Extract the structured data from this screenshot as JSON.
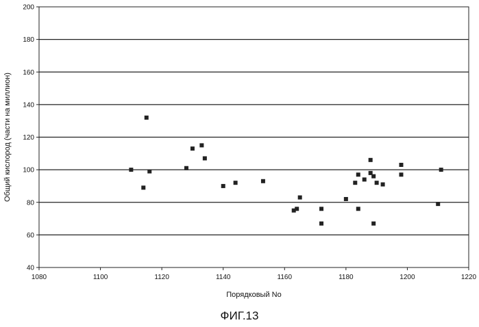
{
  "chart_data": {
    "type": "scatter",
    "title": "",
    "xlabel": "Порядковый No",
    "ylabel": "Общий кислород (части на миллион)",
    "xlim": [
      1080,
      1220
    ],
    "ylim": [
      40,
      200
    ],
    "x_ticks": [
      1080,
      1100,
      1120,
      1140,
      1160,
      1180,
      1200,
      1220
    ],
    "y_ticks": [
      40,
      60,
      80,
      100,
      120,
      140,
      160,
      180,
      200
    ],
    "grid": "horizontal",
    "marker_color": "#222222",
    "series": [
      {
        "points": [
          [
            1110,
            100
          ],
          [
            1114,
            89
          ],
          [
            1115,
            132
          ],
          [
            1116,
            99
          ],
          [
            1128,
            101
          ],
          [
            1130,
            113
          ],
          [
            1133,
            115
          ],
          [
            1134,
            107
          ],
          [
            1140,
            90
          ],
          [
            1144,
            92
          ],
          [
            1153,
            93
          ],
          [
            1163,
            75
          ],
          [
            1164,
            76
          ],
          [
            1165,
            83
          ],
          [
            1172,
            76
          ],
          [
            1172,
            67
          ],
          [
            1180,
            82
          ],
          [
            1183,
            92
          ],
          [
            1184,
            97
          ],
          [
            1184,
            76
          ],
          [
            1186,
            94
          ],
          [
            1188,
            106
          ],
          [
            1188,
            98
          ],
          [
            1189,
            96
          ],
          [
            1189,
            67
          ],
          [
            1190,
            92
          ],
          [
            1192,
            91
          ],
          [
            1198,
            103
          ],
          [
            1198,
            97
          ],
          [
            1210,
            79
          ],
          [
            1211,
            100
          ]
        ]
      }
    ]
  },
  "caption": "ФИГ.13"
}
